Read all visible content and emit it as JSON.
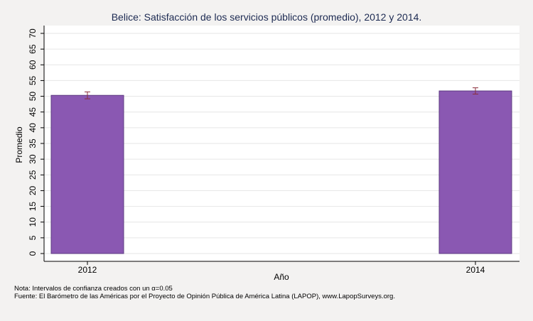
{
  "chart_data": {
    "type": "bar",
    "title": "Belice: Satisfacción de los servicios públicos (promedio), 2012 y 2014.",
    "xlabel": "Año",
    "ylabel": "Promedio",
    "categories": [
      "2012",
      "2014"
    ],
    "values": [
      50.3,
      51.7
    ],
    "ci_low": [
      49.2,
      50.7
    ],
    "ci_high": [
      51.4,
      52.7
    ],
    "ylim": [
      0,
      70
    ],
    "yticks": [
      "0",
      "5",
      "10",
      "15",
      "20",
      "25",
      "30",
      "35",
      "40",
      "45",
      "50",
      "55",
      "60",
      "65",
      "70"
    ],
    "grid": true,
    "bar_color": "#8a58b2",
    "errorbar_color": "#8b2f3c"
  },
  "footnotes": {
    "note": "Nota: Intervalos de confianza creados con un α=0.05",
    "source": "Fuente: El Barómetro de las Américas por el Proyecto de Opinión Pública de América Latina (LAPOP), www.LapopSurveys.org."
  },
  "colors": {
    "background": "#f3f2f1",
    "plot_background": "#ffffff",
    "title": "#1c2a52"
  }
}
